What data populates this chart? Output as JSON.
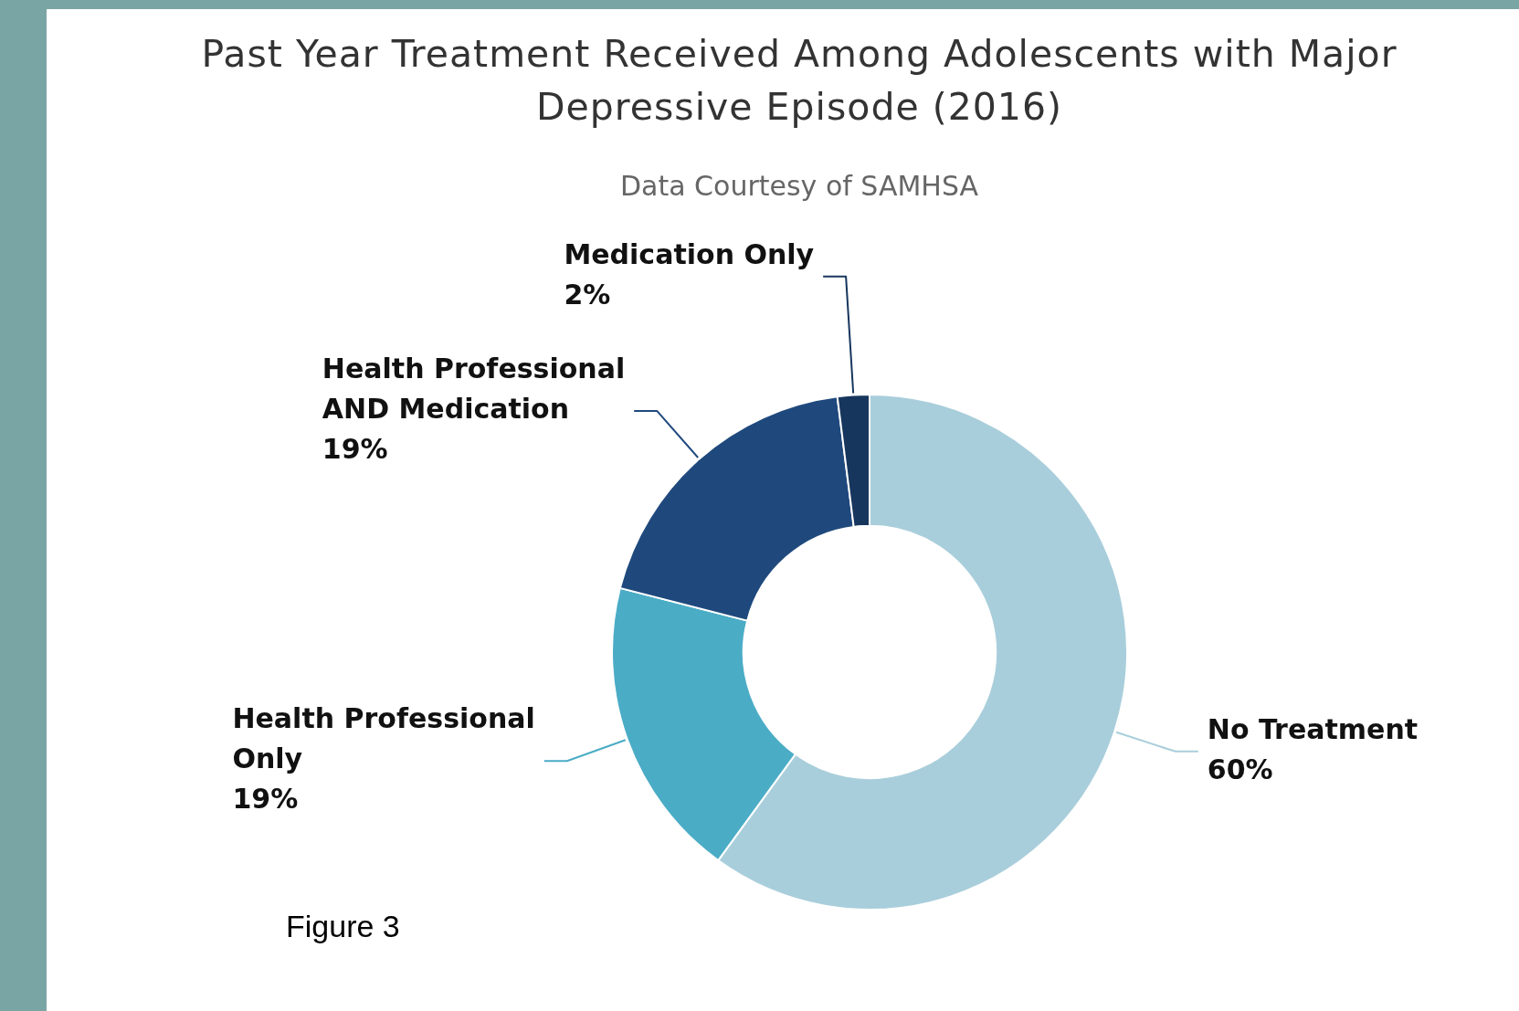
{
  "chart_data": {
    "type": "donut",
    "title": "Past Year Treatment Received Among Adolescents with Major Depressive Episode (2016)",
    "subtitle": "Data Courtesy of SAMHSA",
    "categories": [
      "No Treatment",
      "Health Professional Only",
      "Health Professional AND Medication",
      "Medication Only"
    ],
    "values": [
      60,
      19,
      19,
      2
    ],
    "colors": [
      "#a9cedb",
      "#4bacc6",
      "#1f497d",
      "#17365d"
    ],
    "value_labels": [
      "60%",
      "19%",
      "19%",
      "2%"
    ],
    "legend": false,
    "annotations": [
      "Figure 3"
    ]
  }
}
